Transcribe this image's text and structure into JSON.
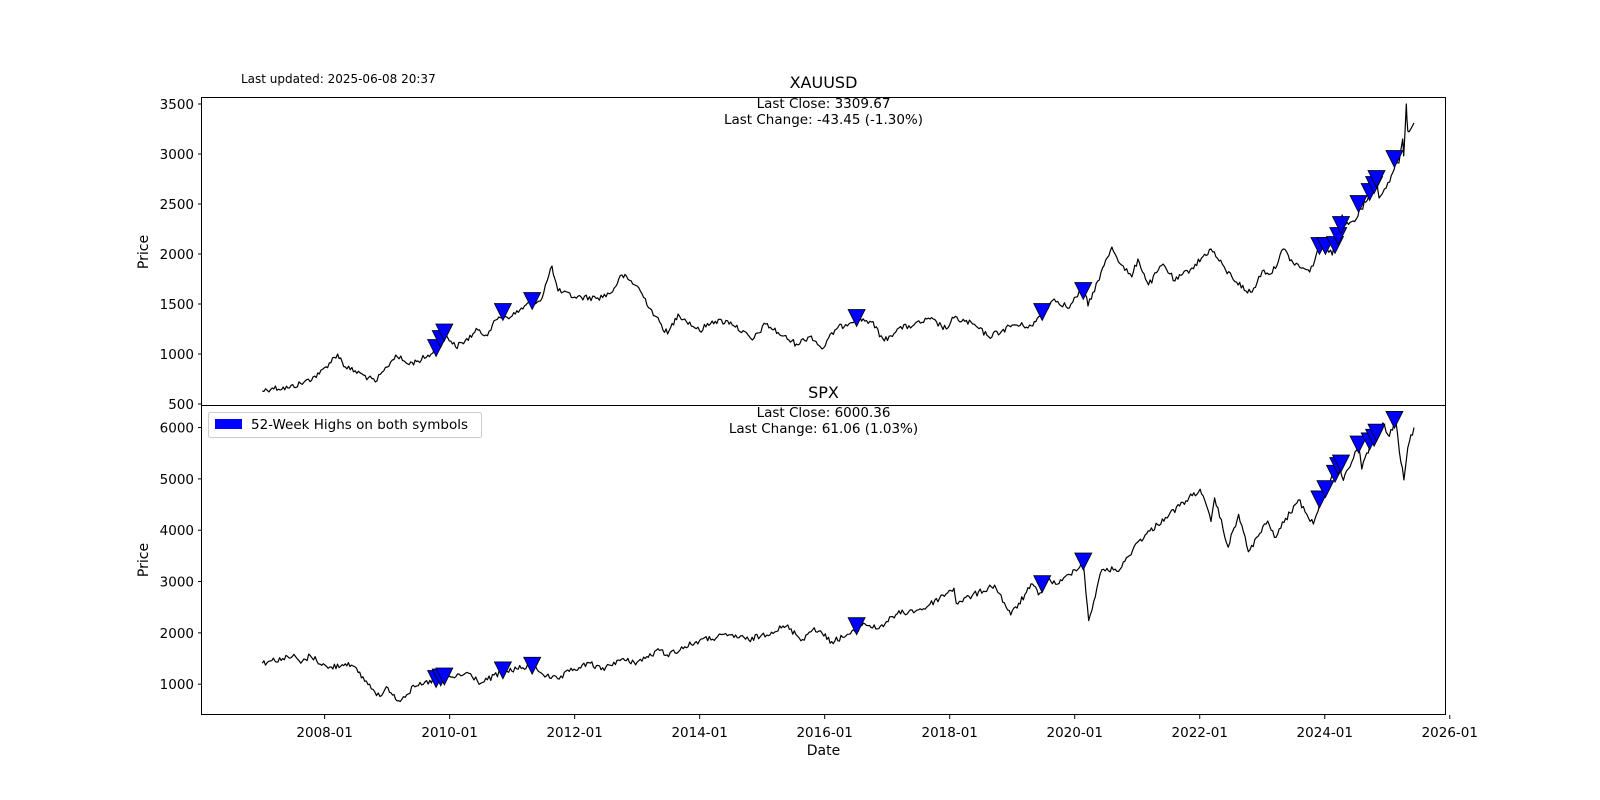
{
  "updated": "Last updated: 2025-06-08 20:37",
  "legend": {
    "label": "52-Week Highs on both symbols",
    "color": "#0000ff",
    "placement": "upper-left"
  },
  "xlabel": "Date",
  "x_ticks": [
    "2008-01",
    "2010-01",
    "2012-01",
    "2014-01",
    "2016-01",
    "2018-01",
    "2020-01",
    "2022-01",
    "2024-01",
    "2026-01"
  ],
  "chart_data": [
    {
      "type": "line",
      "title": "XAUUSD",
      "annotation": [
        "Last Close: 3309.67",
        "Last Change: -43.45 (-1.30%)"
      ],
      "xlabel": "Date",
      "ylabel": "Price",
      "xlim": [
        "2006-01-15",
        "2025-12-10"
      ],
      "ylim": [
        480,
        3560
      ],
      "yticks": [
        500,
        1000,
        1500,
        2000,
        2500,
        3000,
        3500
      ],
      "grid": false,
      "line_color": "#000000",
      "marker_color": "#0000ff",
      "series": [
        {
          "x": [
            "2007-01-02",
            "2007-03-01",
            "2007-06-01",
            "2007-09-01",
            "2007-12-01",
            "2008-03-17",
            "2008-05-01",
            "2008-08-15",
            "2008-10-24",
            "2009-01-01",
            "2009-02-20",
            "2009-05-01",
            "2009-07-01",
            "2009-09-15",
            "2009-10-14",
            "2009-12-02",
            "2010-02-05",
            "2010-04-01",
            "2010-06-15",
            "2010-08-01",
            "2010-10-15",
            "2011-01-01",
            "2011-04-28",
            "2011-06-15",
            "2011-08-22",
            "2011-09-06",
            "2011-09-26",
            "2012-01-01",
            "2012-05-15",
            "2012-08-01",
            "2012-10-04",
            "2013-01-01",
            "2013-04-15",
            "2013-06-28",
            "2013-08-28",
            "2014-01-01",
            "2014-03-15",
            "2014-07-01",
            "2014-11-05",
            "2015-01-22",
            "2015-05-01",
            "2015-07-20",
            "2015-10-15",
            "2015-12-17",
            "2016-03-01",
            "2016-07-06",
            "2016-10-01",
            "2016-12-15",
            "2017-03-01",
            "2017-06-06",
            "2017-09-08",
            "2017-12-12",
            "2018-01-25",
            "2018-05-15",
            "2018-08-16",
            "2018-11-01",
            "2019-01-01",
            "2019-05-01",
            "2019-06-25",
            "2019-09-04",
            "2019-12-01",
            "2020-01-08",
            "2020-02-24",
            "2020-03-19",
            "2020-05-15",
            "2020-08-06",
            "2020-10-01",
            "2020-11-30",
            "2021-01-05",
            "2021-03-08",
            "2021-06-01",
            "2021-08-09",
            "2021-11-16",
            "2022-03-08",
            "2022-06-01",
            "2022-09-28",
            "2022-11-03",
            "2023-01-01",
            "2023-02-28",
            "2023-05-04",
            "2023-06-30",
            "2023-10-05",
            "2023-12-04",
            "2024-01-15",
            "2024-02-14",
            "2024-03-08",
            "2024-04-12",
            "2024-05-01",
            "2024-06-15",
            "2024-08-01",
            "2024-09-15",
            "2024-10-30",
            "2024-11-14",
            "2024-12-15",
            "2025-01-15",
            "2025-02-20",
            "2025-03-10",
            "2025-04-01",
            "2025-04-07",
            "2025-04-22",
            "2025-05-01",
            "2025-05-15",
            "2025-06-06"
          ],
          "y": [
            630,
            660,
            660,
            715,
            800,
            1000,
            870,
            790,
            720,
            870,
            990,
            900,
            930,
            1000,
            1060,
            1215,
            1070,
            1130,
            1240,
            1190,
            1370,
            1380,
            1530,
            1530,
            1880,
            1760,
            1630,
            1570,
            1560,
            1610,
            1790,
            1680,
            1380,
            1200,
            1400,
            1230,
            1330,
            1320,
            1140,
            1300,
            1180,
            1100,
            1180,
            1050,
            1240,
            1360,
            1320,
            1130,
            1250,
            1290,
            1350,
            1250,
            1360,
            1300,
            1175,
            1230,
            1290,
            1280,
            1420,
            1550,
            1460,
            1570,
            1680,
            1480,
            1730,
            2070,
            1890,
            1770,
            1950,
            1690,
            1900,
            1730,
            1860,
            2050,
            1840,
            1630,
            1620,
            1830,
            1810,
            2050,
            1910,
            1820,
            2080,
            2050,
            1990,
            2180,
            2390,
            2290,
            2330,
            2450,
            2580,
            2780,
            2560,
            2650,
            2720,
            2930,
            2910,
            3150,
            2980,
            3500,
            3230,
            3240,
            3309.67
          ]
        }
      ],
      "markers": {
        "x": [
          "2009-10-14",
          "2009-11-10",
          "2009-12-01",
          "2010-11-08",
          "2011-04-28",
          "2016-07-06",
          "2019-06-25",
          "2020-02-20",
          "2023-12-01",
          "2024-01-05",
          "2024-03-01",
          "2024-03-20",
          "2024-04-05",
          "2024-07-17",
          "2024-09-20",
          "2024-10-16",
          "2024-10-30",
          "2025-02-12"
        ],
        "y": [
          1060,
          1150,
          1215,
          1420,
          1530,
          1360,
          1420,
          1630,
          2080,
          2080,
          2090,
          2180,
          2290,
          2500,
          2620,
          2690,
          2750,
          2950
        ]
      }
    },
    {
      "type": "line",
      "title": "SPX",
      "annotation": [
        "Last Close: 6000.36",
        "Last Change: 61.06 (1.03%)"
      ],
      "xlabel": "Date",
      "ylabel": "Price",
      "xlim": [
        "2006-01-15",
        "2025-12-10"
      ],
      "ylim": [
        400,
        6420
      ],
      "yticks": [
        1000,
        2000,
        3000,
        4000,
        5000,
        6000
      ],
      "grid": false,
      "line_color": "#000000",
      "marker_color": "#0000ff",
      "series": [
        {
          "x": [
            "2007-01-02",
            "2007-02-27",
            "2007-05-01",
            "2007-07-15",
            "2007-08-15",
            "2007-10-09",
            "2008-01-22",
            "2008-05-19",
            "2008-07-15",
            "2008-10-10",
            "2008-11-20",
            "2009-01-06",
            "2009-03-09",
            "2009-06-12",
            "2009-08-01",
            "2009-10-14",
            "2010-01-19",
            "2010-04-23",
            "2010-07-02",
            "2010-11-05",
            "2011-04-29",
            "2011-08-08",
            "2011-10-03",
            "2011-12-01",
            "2012-04-02",
            "2012-06-04",
            "2012-09-14",
            "2013-01-01",
            "2013-05-21",
            "2013-06-24",
            "2013-12-31",
            "2014-07-01",
            "2014-10-15",
            "2015-05-21",
            "2015-08-25",
            "2015-11-01",
            "2016-02-11",
            "2016-06-27",
            "2016-08-15",
            "2016-11-04",
            "2017-03-01",
            "2017-08-01",
            "2018-01-26",
            "2018-02-08",
            "2018-09-20",
            "2018-12-24",
            "2019-04-30",
            "2019-06-03",
            "2019-07-26",
            "2019-10-01",
            "2020-01-01",
            "2020-02-19",
            "2020-03-23",
            "2020-06-08",
            "2020-09-23",
            "2021-01-01",
            "2021-06-15",
            "2022-01-03",
            "2022-03-08",
            "2022-03-29",
            "2022-06-16",
            "2022-08-16",
            "2022-10-12",
            "2023-02-02",
            "2023-03-13",
            "2023-07-31",
            "2023-10-27",
            "2023-12-29",
            "2024-03-28",
            "2024-04-19",
            "2024-07-16",
            "2024-08-05",
            "2024-10-01",
            "2024-12-06",
            "2025-01-13",
            "2025-02-19",
            "2025-03-13",
            "2025-04-08",
            "2025-05-01",
            "2025-06-06"
          ],
          "y": [
            1410,
            1460,
            1500,
            1540,
            1410,
            1560,
            1310,
            1420,
            1230,
            900,
            760,
            930,
            680,
            950,
            1000,
            1100,
            1140,
            1210,
            1020,
            1240,
            1360,
            1120,
            1100,
            1250,
            1410,
            1280,
            1470,
            1430,
            1670,
            1570,
            1850,
            1960,
            1860,
            2130,
            1870,
            2100,
            1830,
            2020,
            2190,
            2080,
            2370,
            2470,
            2870,
            2580,
            2930,
            2350,
            2950,
            2740,
            3030,
            2960,
            3230,
            3390,
            2240,
            3230,
            3240,
            3760,
            4250,
            4800,
            4170,
            4630,
            3670,
            4310,
            3580,
            4180,
            3860,
            4590,
            4120,
            4770,
            5250,
            4970,
            5670,
            5190,
            5710,
            6090,
            5830,
            6140,
            5520,
            4980,
            5610,
            6000.36
          ]
        }
      ],
      "markers": {
        "x": [
          "2009-10-14",
          "2009-11-10",
          "2009-12-01",
          "2010-11-08",
          "2011-04-28",
          "2016-07-06",
          "2019-06-25",
          "2020-02-20",
          "2023-12-01",
          "2024-01-05",
          "2024-03-01",
          "2024-03-20",
          "2024-04-05",
          "2024-07-17",
          "2024-09-20",
          "2024-10-16",
          "2024-10-30",
          "2025-02-12"
        ],
        "y": [
          1100,
          1130,
          1150,
          1270,
          1360,
          2130,
          2950,
          3390,
          4600,
          4800,
          5100,
          5250,
          5300,
          5670,
          5730,
          5800,
          5900,
          6150
        ]
      }
    }
  ]
}
